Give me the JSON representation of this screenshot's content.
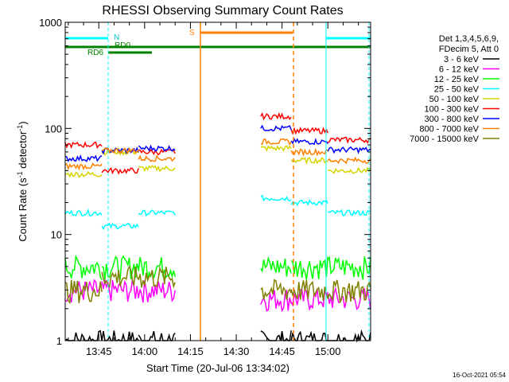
{
  "chart_data": {
    "type": "line",
    "title": "RHESSI Observing Summary Count Rates",
    "xlabel": "Start Time (20-Jul-06 13:34:02)",
    "ylabel_main": "Count Rate (s",
    "ylabel_sup1": "-1",
    "ylabel_mid": " detector",
    "ylabel_sup2": "-1",
    "ylabel_end": ")",
    "x_ticks": [
      "13:45",
      "14:00",
      "14:15",
      "14:30",
      "14:45",
      "15:00"
    ],
    "y_ticks": [
      "1",
      "10",
      "100",
      "1000"
    ],
    "x_range_minutes_after_start": [
      0,
      100
    ],
    "ylim": [
      1,
      1000
    ],
    "y_scale": "log",
    "legend_header": [
      "Det 1,3,4,5,6,9,",
      "FDecim 5, Att 0"
    ],
    "legend_placement": "right",
    "timestamp": "16-Oct-2021 05:54",
    "flags": {
      "N_label": "N",
      "RD0_label": "RD0",
      "RD6_label": "RD6",
      "S_label": "S"
    },
    "series": [
      {
        "name": "3 - 6 keV",
        "color": "#000000"
      },
      {
        "name": "6 - 12 keV",
        "color": "#ff00ff"
      },
      {
        "name": "12 - 25 keV",
        "color": "#00ff00"
      },
      {
        "name": "25 - 50 keV",
        "color": "#00ffff"
      },
      {
        "name": "50 - 100 keV",
        "color": "#d4d400"
      },
      {
        "name": "100 - 300 keV",
        "color": "#ff0000"
      },
      {
        "name": "300 - 800 keV",
        "color": "#0000ff"
      },
      {
        "name": "800 - 7000 keV",
        "color": "#ff8000"
      },
      {
        "name": "7000 - 15000 keV",
        "color": "#808000"
      }
    ],
    "segments": [
      {
        "x0": 0,
        "x1": 12,
        "values": [
          1,
          3,
          5,
          16,
          37,
          70,
          52,
          44,
          3
        ]
      },
      {
        "x0": 12,
        "x1": 24,
        "values": [
          1,
          3,
          5,
          12,
          60,
          40,
          62,
          62,
          4
        ]
      },
      {
        "x0": 24,
        "x1": 36,
        "values": [
          1,
          3,
          5,
          16,
          42,
          60,
          65,
          52,
          4
        ]
      },
      {
        "x0": 64,
        "x1": 74,
        "values": [
          1,
          2.5,
          5,
          22,
          65,
          130,
          100,
          75,
          3
        ]
      },
      {
        "x0": 74,
        "x1": 86,
        "values": [
          1,
          2.5,
          5,
          20,
          50,
          95,
          75,
          60,
          3
        ]
      },
      {
        "x0": 86,
        "x1": 100,
        "values": [
          1,
          2.5,
          5,
          16,
          40,
          78,
          63,
          50,
          3
        ]
      }
    ]
  }
}
